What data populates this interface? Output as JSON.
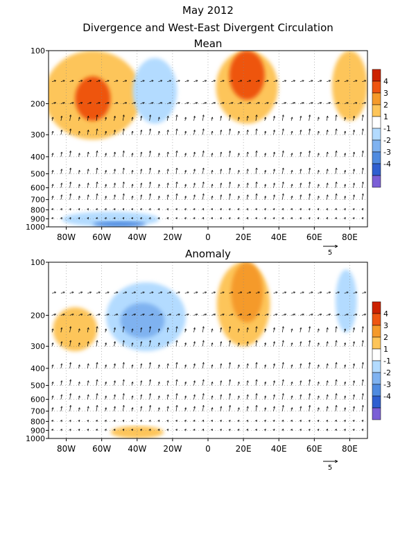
{
  "title": "May 2012",
  "subtitle": "Divergence and West-East Divergent Circulation",
  "chart_data": [
    {
      "type": "heatmap",
      "title": "Mean",
      "xlabel": "",
      "ylabel": "",
      "x_ticks": [
        "80W",
        "60W",
        "40W",
        "20W",
        "0",
        "20E",
        "40E",
        "60E",
        "80E"
      ],
      "x_tick_values": [
        -80,
        -60,
        -40,
        -20,
        0,
        20,
        40,
        60,
        80
      ],
      "xlim": [
        -90,
        90
      ],
      "y_ticks": [
        "100",
        "200",
        "300",
        "400",
        "500",
        "600",
        "700",
        "800",
        "900",
        "1000"
      ],
      "y_tick_values": [
        100,
        200,
        300,
        400,
        500,
        600,
        700,
        800,
        900,
        1000
      ],
      "ylim": [
        1000,
        100
      ],
      "y_scale": "log",
      "colorbar": {
        "labels": [
          "4",
          "3",
          "2",
          "1",
          "-1",
          "-2",
          "-3",
          "-4"
        ],
        "colors": [
          "#cc2200",
          "#ee5511",
          "#f59a2a",
          "#fdc55a",
          "#ffffff",
          "#b3dbff",
          "#7fb2f0",
          "#4f8be0",
          "#2f5fd0",
          "#7b5fd6"
        ]
      },
      "vector_reference": "5",
      "divergence_areas": [
        {
          "sign": "positive",
          "level": 1,
          "center_lon": -65,
          "center_p": 190,
          "lon_width": 55,
          "p_low": 100,
          "p_high": 320
        },
        {
          "sign": "positive",
          "level": 3,
          "center_lon": -65,
          "center_p": 200,
          "lon_width": 20,
          "p_low": 140,
          "p_high": 250
        },
        {
          "sign": "positive",
          "level": 1,
          "center_lon": 22,
          "center_p": 150,
          "lon_width": 35,
          "p_low": 100,
          "p_high": 260
        },
        {
          "sign": "positive",
          "level": 3,
          "center_lon": 22,
          "center_p": 130,
          "lon_width": 20,
          "p_low": 100,
          "p_high": 190
        },
        {
          "sign": "positive",
          "level": 1,
          "center_lon": 80,
          "center_p": 140,
          "lon_width": 20,
          "p_low": 100,
          "p_high": 250
        },
        {
          "sign": "negative",
          "level": -1,
          "center_lon": -55,
          "center_p": 950,
          "lon_width": 55,
          "p_low": 820,
          "p_high": 1000
        },
        {
          "sign": "negative",
          "level": -3,
          "center_lon": -50,
          "center_p": 980,
          "lon_width": 30,
          "p_low": 930,
          "p_high": 1000
        },
        {
          "sign": "negative",
          "level": -1,
          "center_lon": -30,
          "center_p": 180,
          "lon_width": 25,
          "p_low": 110,
          "p_high": 260
        }
      ]
    },
    {
      "type": "heatmap",
      "title": "Anomaly",
      "xlabel": "",
      "ylabel": "",
      "x_ticks": [
        "80W",
        "60W",
        "40W",
        "20W",
        "0",
        "20E",
        "40E",
        "60E",
        "80E"
      ],
      "x_tick_values": [
        -80,
        -60,
        -40,
        -20,
        0,
        20,
        40,
        60,
        80
      ],
      "xlim": [
        -90,
        90
      ],
      "y_ticks": [
        "100",
        "200",
        "300",
        "400",
        "500",
        "600",
        "700",
        "800",
        "900",
        "1000"
      ],
      "y_tick_values": [
        100,
        200,
        300,
        400,
        500,
        600,
        700,
        800,
        900,
        1000
      ],
      "ylim": [
        1000,
        100
      ],
      "y_scale": "log",
      "colorbar": {
        "labels": [
          "4",
          "3",
          "2",
          "1",
          "-1",
          "-2",
          "-3",
          "-4"
        ],
        "colors": [
          "#cc2200",
          "#ee5511",
          "#f59a2a",
          "#fdc55a",
          "#ffffff",
          "#b3dbff",
          "#7fb2f0",
          "#4f8be0",
          "#2f5fd0",
          "#7b5fd6"
        ]
      },
      "vector_reference": "5",
      "divergence_areas": [
        {
          "sign": "negative",
          "level": -1,
          "center_lon": -35,
          "center_p": 210,
          "lon_width": 45,
          "p_low": 130,
          "p_high": 320
        },
        {
          "sign": "negative",
          "level": -2,
          "center_lon": -37,
          "center_p": 220,
          "lon_width": 25,
          "p_low": 170,
          "p_high": 270
        },
        {
          "sign": "positive",
          "level": 1,
          "center_lon": -75,
          "center_p": 240,
          "lon_width": 25,
          "p_low": 180,
          "p_high": 320
        },
        {
          "sign": "positive",
          "level": 1,
          "center_lon": 20,
          "center_p": 170,
          "lon_width": 30,
          "p_low": 100,
          "p_high": 300
        },
        {
          "sign": "positive",
          "level": 2,
          "center_lon": 22,
          "center_p": 140,
          "lon_width": 18,
          "p_low": 100,
          "p_high": 220
        },
        {
          "sign": "negative",
          "level": -1,
          "center_lon": 78,
          "center_p": 150,
          "lon_width": 12,
          "p_low": 110,
          "p_high": 250
        },
        {
          "sign": "positive",
          "level": 1,
          "center_lon": -40,
          "center_p": 920,
          "lon_width": 30,
          "p_low": 850,
          "p_high": 1000
        }
      ]
    }
  ]
}
